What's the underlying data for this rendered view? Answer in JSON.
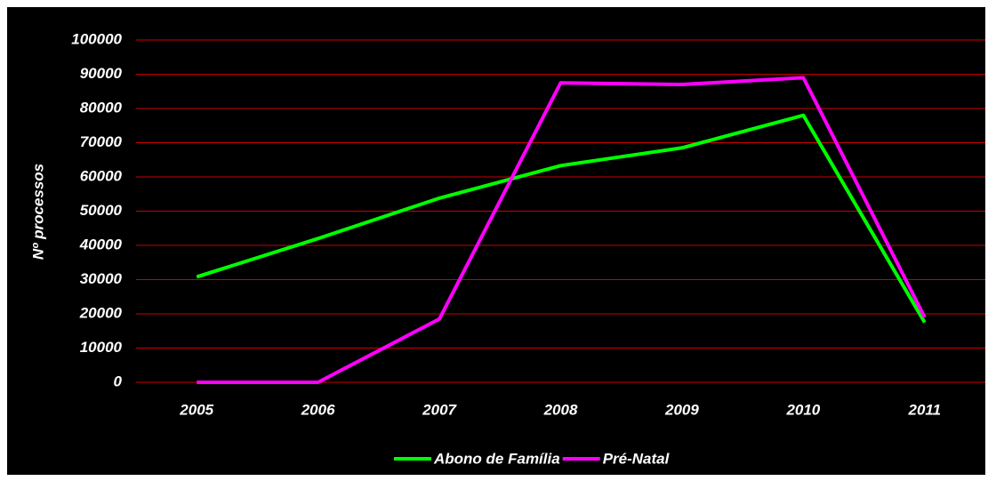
{
  "chart_data": {
    "type": "line",
    "y_label": "Nº processos",
    "categories": [
      "2005",
      "2006",
      "2007",
      "2008",
      "2009",
      "2010",
      "2011"
    ],
    "series": [
      {
        "name": "Abono de Família",
        "color": "#00ff00",
        "values": [
          30800,
          42000,
          53800,
          63300,
          68500,
          78000,
          17500
        ]
      },
      {
        "name": "Pré-Natal",
        "color": "#ff00ff",
        "values": [
          0,
          0,
          18500,
          87500,
          87000,
          89000,
          19000
        ]
      }
    ],
    "ylim": [
      0,
      100000
    ],
    "yticks": [
      0,
      10000,
      20000,
      30000,
      40000,
      50000,
      60000,
      70000,
      80000,
      90000,
      100000
    ],
    "grid": true,
    "grid_color": "#cc0000",
    "legend": "bottom"
  }
}
